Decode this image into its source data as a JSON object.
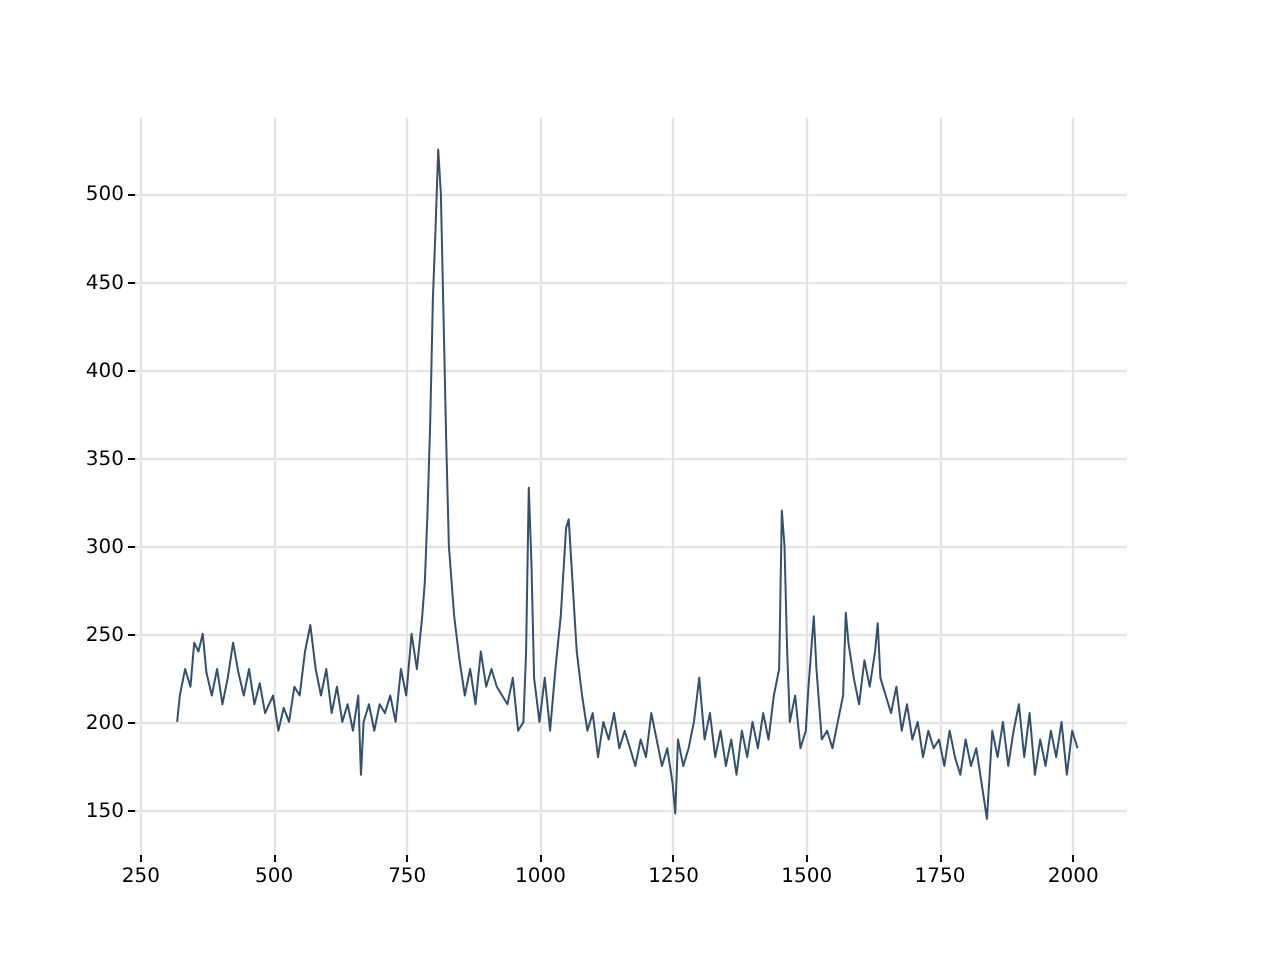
{
  "chart_data": {
    "type": "line",
    "xlim": [
      239,
      2101
    ],
    "ylim": [
      125,
      544
    ],
    "xticks": [
      250,
      500,
      750,
      1000,
      1250,
      1500,
      1750,
      2000
    ],
    "yticks": [
      150,
      200,
      250,
      300,
      350,
      400,
      450,
      500
    ],
    "grid": true,
    "line_style": "solid",
    "marker": "none",
    "series": [
      {
        "color": "#34506f",
        "x": [
          320,
          325,
          335,
          345,
          352,
          360,
          368,
          375,
          385,
          395,
          405,
          415,
          425,
          435,
          445,
          455,
          465,
          475,
          485,
          500,
          510,
          520,
          530,
          540,
          550,
          560,
          570,
          580,
          590,
          600,
          610,
          620,
          630,
          640,
          650,
          660,
          665,
          670,
          680,
          690,
          700,
          710,
          720,
          730,
          740,
          750,
          760,
          770,
          780,
          785,
          790,
          795,
          800,
          805,
          810,
          815,
          820,
          825,
          830,
          840,
          850,
          860,
          870,
          880,
          890,
          900,
          910,
          920,
          930,
          940,
          950,
          960,
          970,
          975,
          980,
          985,
          990,
          1000,
          1010,
          1020,
          1030,
          1040,
          1050,
          1055,
          1060,
          1070,
          1080,
          1090,
          1100,
          1110,
          1120,
          1130,
          1140,
          1150,
          1160,
          1170,
          1180,
          1190,
          1200,
          1210,
          1220,
          1230,
          1240,
          1250,
          1255,
          1260,
          1270,
          1280,
          1290,
          1300,
          1310,
          1320,
          1330,
          1340,
          1350,
          1360,
          1370,
          1380,
          1390,
          1400,
          1410,
          1420,
          1430,
          1440,
          1450,
          1455,
          1460,
          1465,
          1470,
          1480,
          1490,
          1500,
          1505,
          1510,
          1515,
          1520,
          1530,
          1540,
          1550,
          1560,
          1570,
          1575,
          1580,
          1590,
          1600,
          1610,
          1620,
          1630,
          1635,
          1640,
          1650,
          1660,
          1670,
          1680,
          1690,
          1700,
          1710,
          1720,
          1730,
          1740,
          1750,
          1760,
          1770,
          1780,
          1790,
          1800,
          1810,
          1820,
          1830,
          1840,
          1850,
          1860,
          1870,
          1880,
          1890,
          1900,
          1910,
          1920,
          1930,
          1940,
          1950,
          1960,
          1970,
          1980,
          1990,
          2000,
          2010
        ],
        "values": [
          200,
          215,
          230,
          220,
          245,
          240,
          250,
          228,
          215,
          230,
          210,
          225,
          245,
          228,
          215,
          230,
          210,
          222,
          205,
          215,
          195,
          208,
          200,
          220,
          215,
          240,
          255,
          230,
          215,
          230,
          205,
          220,
          200,
          210,
          195,
          215,
          170,
          200,
          210,
          195,
          210,
          205,
          215,
          200,
          230,
          215,
          250,
          230,
          260,
          280,
          320,
          370,
          440,
          480,
          525,
          500,
          430,
          360,
          300,
          260,
          235,
          215,
          230,
          210,
          240,
          220,
          230,
          220,
          215,
          210,
          225,
          195,
          200,
          240,
          333,
          290,
          225,
          200,
          225,
          195,
          230,
          260,
          310,
          315,
          290,
          240,
          215,
          195,
          205,
          180,
          200,
          190,
          205,
          185,
          195,
          185,
          175,
          190,
          180,
          205,
          190,
          175,
          185,
          165,
          148,
          190,
          175,
          185,
          200,
          225,
          190,
          205,
          180,
          195,
          175,
          190,
          170,
          195,
          180,
          200,
          185,
          205,
          190,
          215,
          230,
          320,
          300,
          240,
          200,
          215,
          185,
          195,
          220,
          240,
          260,
          230,
          190,
          195,
          185,
          200,
          215,
          262,
          245,
          225,
          210,
          235,
          220,
          240,
          256,
          225,
          215,
          205,
          220,
          195,
          210,
          190,
          200,
          180,
          195,
          185,
          190,
          175,
          195,
          180,
          170,
          190,
          175,
          185,
          165,
          145,
          195,
          180,
          200,
          175,
          195,
          210,
          180,
          205,
          170,
          190,
          175,
          195,
          180,
          200,
          170,
          195,
          185
        ]
      }
    ]
  }
}
